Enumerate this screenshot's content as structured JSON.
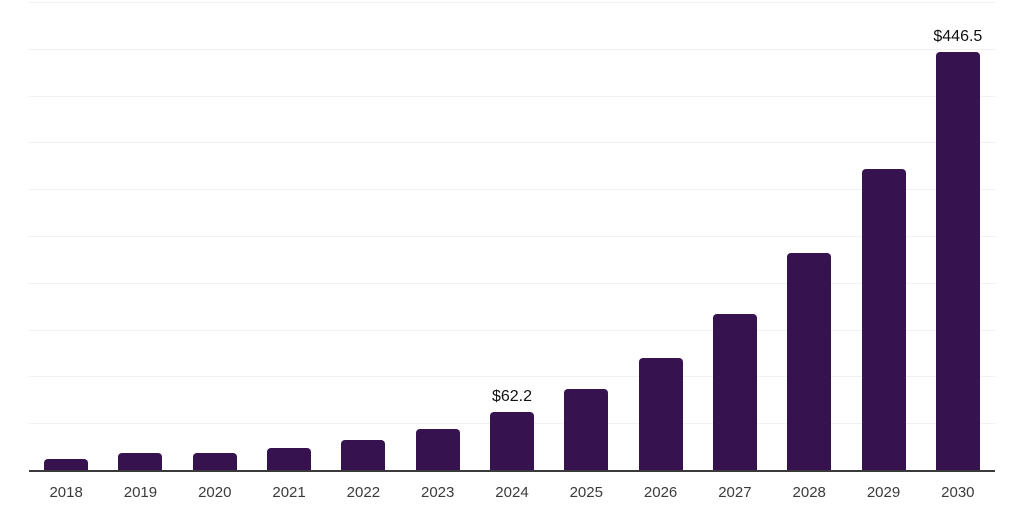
{
  "chart_data": {
    "type": "bar",
    "title": "",
    "xlabel": "",
    "ylabel": "",
    "categories": [
      "2018",
      "2019",
      "2020",
      "2021",
      "2022",
      "2023",
      "2024",
      "2025",
      "2026",
      "2027",
      "2028",
      "2029",
      "2030"
    ],
    "values": [
      11.5,
      17.8,
      18.5,
      23.9,
      32.0,
      43.8,
      62.2,
      86.4,
      120.0,
      166.8,
      231.8,
      322.1,
      446.5
    ],
    "annotations": [
      {
        "category": "2024",
        "label": "$62.2"
      },
      {
        "category": "2030",
        "label": "$446.5"
      }
    ],
    "ylim": [
      0,
      500
    ],
    "gridline_interval": 50,
    "grid": true,
    "y_tick_labels_shown": false,
    "legend": "none",
    "colors": {
      "bar": "#36124e",
      "gridline": "#f1f1f1",
      "axis_line": "#3a3a3a",
      "tick_label": "#3b3b3b",
      "annotation_text": "#111111"
    }
  }
}
